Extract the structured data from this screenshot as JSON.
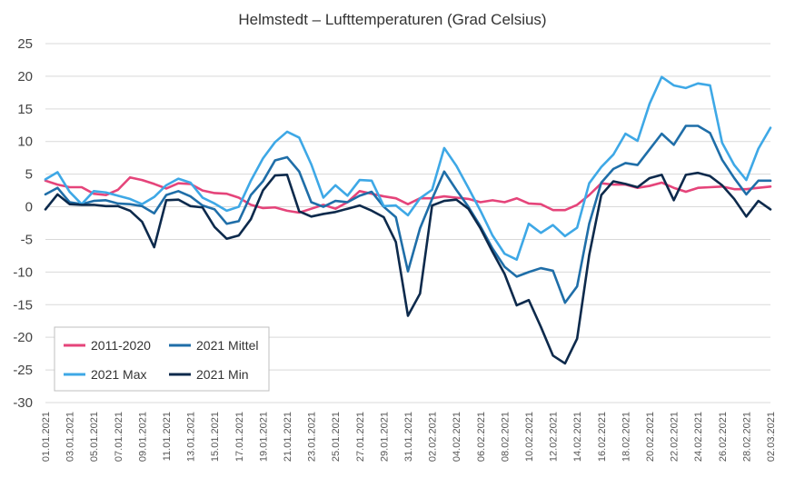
{
  "chart_data": {
    "type": "line",
    "title": "Helmstedt – Lufttemperaturen (Grad Celsius)",
    "ylim": [
      -30,
      25
    ],
    "yticks": [
      25,
      20,
      15,
      10,
      5,
      0,
      -5,
      -10,
      -15,
      -20,
      -25,
      -30
    ],
    "grid": true,
    "legend_position": "bottom-left",
    "x": [
      "01.01.2021",
      "02.01.2021",
      "03.01.2021",
      "04.01.2021",
      "05.01.2021",
      "06.01.2021",
      "07.01.2021",
      "08.01.2021",
      "09.01.2021",
      "10.01.2021",
      "11.01.2021",
      "12.01.2021",
      "13.01.2021",
      "14.01.2021",
      "15.01.2021",
      "16.01.2021",
      "17.01.2021",
      "18.01.2021",
      "19.01.2021",
      "20.01.2021",
      "21.01.2021",
      "22.01.2021",
      "23.01.2021",
      "24.01.2021",
      "25.01.2021",
      "26.01.2021",
      "27.01.2021",
      "28.01.2021",
      "29.01.2021",
      "30.01.2021",
      "31.01.2021",
      "01.02.2021",
      "02.02.2021",
      "03.02.2021",
      "04.02.2021",
      "05.02.2021",
      "06.02.2021",
      "07.02.2021",
      "08.02.2021",
      "09.02.2021",
      "10.02.2021",
      "11.02.2021",
      "12.02.2021",
      "13.02.2021",
      "14.02.2021",
      "15.02.2021",
      "16.02.2021",
      "17.02.2021",
      "18.02.2021",
      "19.02.2021",
      "20.02.2021",
      "21.02.2021",
      "22.02.2021",
      "23.02.2021",
      "24.02.2021",
      "25.02.2021",
      "26.02.2021",
      "27.02.2021",
      "28.02.2021",
      "01.03.2021",
      "02.03.2021"
    ],
    "xtick_labels": [
      "01.01.2021",
      "03.01.2021",
      "05.01.2021",
      "07.01.2021",
      "09.01.2021",
      "11.01.2021",
      "13.01.2021",
      "15.01.2021",
      "17.01.2021",
      "19.01.2021",
      "21.01.2021",
      "23.01.2021",
      "25.01.2021",
      "27.01.2021",
      "29.01.2021",
      "31.01.2021",
      "02.02.2021",
      "04.02.2021",
      "06.02.2021",
      "08.02.2021",
      "10.02.2021",
      "12.02.2021",
      "14.02.2021",
      "16.02.2021",
      "18.02.2021",
      "20.02.2021",
      "22.02.2021",
      "24.02.2021",
      "26.02.2021",
      "28.02.2021",
      "02.03.2021"
    ],
    "series": [
      {
        "name": "2011-2020",
        "color": "#e5447a",
        "values": [
          4.0,
          3.4,
          3.0,
          3.0,
          2.0,
          1.8,
          2.6,
          4.5,
          4.1,
          3.5,
          2.8,
          3.6,
          3.5,
          2.5,
          2.1,
          2.0,
          1.4,
          0.3,
          -0.2,
          -0.1,
          -0.6,
          -0.9,
          -0.3,
          0.3,
          -0.3,
          0.7,
          2.4,
          2.0,
          1.6,
          1.3,
          0.4,
          1.3,
          1.3,
          1.6,
          1.4,
          1.2,
          0.7,
          1.0,
          0.7,
          1.3,
          0.5,
          0.4,
          -0.5,
          -0.5,
          0.3,
          1.8,
          3.6,
          3.4,
          3.4,
          2.9,
          3.2,
          3.7,
          2.9,
          2.3,
          2.9,
          3.0,
          3.1,
          2.7,
          2.7,
          2.9,
          3.1
        ]
      },
      {
        "name": "2021 Mittel",
        "color": "#1f6ea8",
        "values": [
          1.9,
          2.9,
          0.7,
          0.4,
          0.9,
          1.0,
          0.5,
          0.4,
          0.1,
          -1.0,
          1.8,
          2.4,
          1.6,
          0.2,
          -0.4,
          -2.6,
          -2.2,
          1.8,
          3.9,
          7.1,
          7.6,
          5.4,
          0.7,
          0.0,
          0.9,
          0.7,
          1.7,
          2.3,
          0.0,
          -1.6,
          -9.9,
          -3.3,
          1.2,
          5.4,
          2.6,
          0.0,
          -3.0,
          -6.4,
          -9.2,
          -10.7,
          -10.0,
          -9.4,
          -9.8,
          -14.7,
          -12.2,
          -2.6,
          3.7,
          5.8,
          6.7,
          6.4,
          8.8,
          11.2,
          9.5,
          12.4,
          12.4,
          11.3,
          7.2,
          4.4,
          1.9,
          4.0,
          4.0
        ]
      },
      {
        "name": "2021 Max",
        "color": "#3ea8e6",
        "values": [
          4.2,
          5.3,
          2.3,
          0.4,
          2.4,
          2.2,
          1.7,
          1.2,
          0.4,
          1.5,
          3.3,
          4.3,
          3.7,
          1.4,
          0.5,
          -0.6,
          0.0,
          4.0,
          7.4,
          9.9,
          11.5,
          10.6,
          6.5,
          1.4,
          3.3,
          1.7,
          4.1,
          4.0,
          0.1,
          0.2,
          -1.3,
          1.3,
          2.6,
          9.0,
          6.3,
          2.9,
          -0.6,
          -4.4,
          -7.2,
          -8.1,
          -2.6,
          -4.0,
          -2.8,
          -4.5,
          -3.2,
          3.6,
          6.1,
          8.0,
          11.2,
          10.1,
          15.8,
          19.9,
          18.6,
          18.2,
          18.9,
          18.6,
          9.8,
          6.4,
          4.1,
          8.9,
          12.1
        ]
      },
      {
        "name": "2021 Min",
        "color": "#0d2a4c",
        "values": [
          -0.4,
          1.9,
          0.4,
          0.3,
          0.3,
          0.1,
          0.1,
          -0.6,
          -2.3,
          -6.2,
          1.0,
          1.1,
          0.1,
          -0.1,
          -3.1,
          -4.9,
          -4.4,
          -1.9,
          2.5,
          4.8,
          4.9,
          -0.7,
          -1.5,
          -1.1,
          -0.8,
          -0.3,
          0.2,
          -0.6,
          -1.6,
          -5.4,
          -16.7,
          -13.3,
          0.2,
          0.9,
          1.1,
          -0.3,
          -3.3,
          -6.9,
          -10.3,
          -15.1,
          -14.3,
          -18.4,
          -22.8,
          -24.0,
          -20.2,
          -7.4,
          1.8,
          3.9,
          3.5,
          3.0,
          4.4,
          4.9,
          1.0,
          4.9,
          5.2,
          4.7,
          3.3,
          1.2,
          -1.5,
          0.9,
          -0.4
        ]
      }
    ]
  }
}
